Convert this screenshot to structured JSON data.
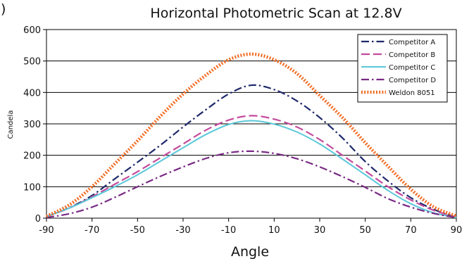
{
  "corner_fragment": ")",
  "chart_data": {
    "type": "line",
    "title": "Horizontal Photometric Scan at 12.8V",
    "xlabel": "Angle",
    "ylabel": "Candela",
    "xlim": [
      -90,
      90
    ],
    "ylim": [
      0,
      600
    ],
    "xticks": [
      "-90",
      "-70",
      "-50",
      "-30",
      "-10",
      "10",
      "30",
      "50",
      "70",
      "90"
    ],
    "yticks": [
      "0",
      "100",
      "200",
      "300",
      "400",
      "500",
      "600"
    ],
    "grid": "horizontal",
    "legend_position": "top-right",
    "x": [
      -90,
      -80,
      -70,
      -60,
      -50,
      -40,
      -30,
      -20,
      -10,
      0,
      10,
      20,
      30,
      40,
      50,
      60,
      70,
      80,
      90
    ],
    "series": [
      {
        "name": "Competitor A",
        "color": "#1f2a6b",
        "dash": "dash-dot",
        "values": [
          5,
          33,
          72,
          125,
          178,
          232,
          290,
          345,
          395,
          423,
          409,
          373,
          320,
          255,
          180,
          118,
          65,
          28,
          3
        ]
      },
      {
        "name": "Competitor B",
        "color": "#c44b9c",
        "dash": "dash",
        "values": [
          5,
          32,
          68,
          108,
          148,
          192,
          236,
          280,
          312,
          326,
          315,
          290,
          250,
          200,
          150,
          100,
          58,
          25,
          3
        ]
      },
      {
        "name": "Competitor C",
        "color": "#5bc8d8",
        "dash": "solid",
        "values": [
          5,
          32,
          65,
          100,
          138,
          181,
          224,
          266,
          298,
          310,
          299,
          274,
          236,
          188,
          138,
          88,
          46,
          17,
          2
        ]
      },
      {
        "name": "Competitor D",
        "color": "#7a2a85",
        "dash": "dash-dot",
        "values": [
          2,
          14,
          35,
          66,
          100,
          133,
          163,
          190,
          208,
          213,
          206,
          189,
          163,
          132,
          98,
          62,
          35,
          15,
          2
        ]
      },
      {
        "name": "Weldon 8051",
        "color": "#f26b21",
        "dash": "dotted",
        "values": [
          6,
          42,
          100,
          173,
          246,
          324,
          395,
          455,
          504,
          522,
          504,
          460,
          390,
          320,
          240,
          165,
          92,
          36,
          7
        ]
      }
    ]
  }
}
